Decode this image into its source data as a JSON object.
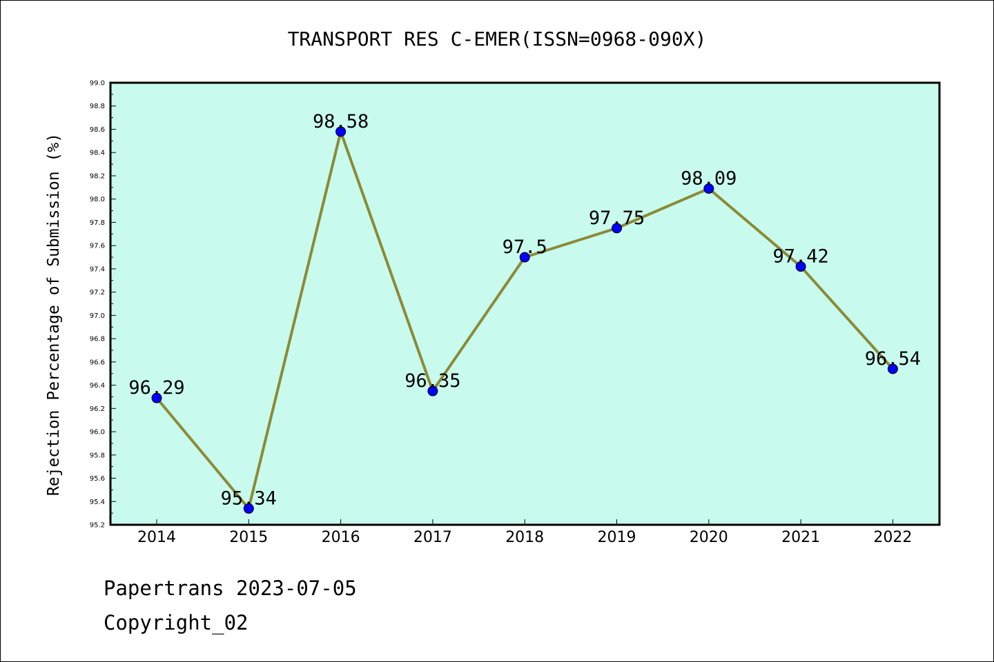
{
  "footer": {
    "line1": "Papertrans 2023-07-05",
    "line2": "Copyright_02"
  },
  "colors": {
    "plot_background": "#c8fbee",
    "line": "#8c8a37",
    "marker": "#0000ff",
    "axis": "#000000"
  },
  "chart_data": {
    "type": "line",
    "title": "TRANSPORT RES C-EMER(ISSN=0968-090X)",
    "xlabel": "",
    "ylabel": "Rejection Percentage of Submission (%)",
    "categories": [
      "2014",
      "2015",
      "2016",
      "2017",
      "2018",
      "2019",
      "2020",
      "2021",
      "2022"
    ],
    "series": [
      {
        "values": [
          96.29,
          95.34,
          98.58,
          96.35,
          97.5,
          97.75,
          98.09,
          97.42,
          96.54
        ],
        "labels": [
          "96.29",
          "95.34",
          "98.58",
          "96.35",
          "97.5",
          "97.75",
          "98.09",
          "97.42",
          "96.54"
        ]
      }
    ],
    "ylim": [
      95.2,
      99.0
    ],
    "yticks": [
      "95.2",
      "95.4",
      "95.6",
      "95.8",
      "96.0",
      "96.2",
      "96.4",
      "96.6",
      "96.8",
      "97.0",
      "97.2",
      "97.4",
      "97.6",
      "97.8",
      "98.0",
      "98.2",
      "98.4",
      "98.6",
      "98.8",
      "99.0"
    ],
    "grid": false,
    "legend": "none"
  }
}
